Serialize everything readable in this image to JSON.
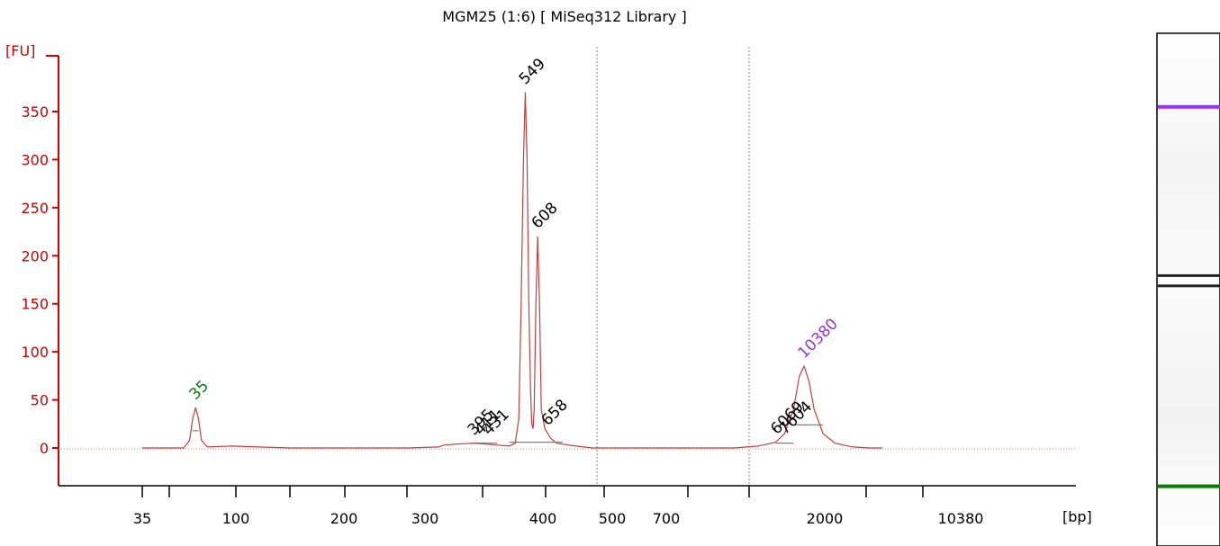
{
  "colors": {
    "axis_red": "#cc0000",
    "trace": "#c04040",
    "label_black": "#000000",
    "lower_marker": "#008000",
    "upper_marker": "#9932cc",
    "region_line": "#808080",
    "baseline_dots": "#d08060",
    "gel_purple": "#9b30ff",
    "gel_green": "#008000",
    "gel_band": "#222222"
  },
  "chart_data": {
    "type": "line",
    "title": "MGM25 (1:6)  [ MiSeq312 Library ]",
    "ylabel": "[FU]",
    "xlabel": "[bp]",
    "ylim": [
      -40,
      390
    ],
    "yticks": [
      0,
      50,
      100,
      150,
      200,
      250,
      300,
      350
    ],
    "x_categories": [
      "35",
      "",
      "100",
      "200",
      "300",
      "400",
      "500",
      "700",
      "",
      "2000",
      "",
      "",
      "10380"
    ],
    "grid": false,
    "region_bounds": [
      0.55,
      7.2
    ],
    "series": [
      {
        "points": [
          [
            0,
            0
          ],
          [
            0.7,
            0
          ],
          [
            0.8,
            8
          ],
          [
            0.85,
            30
          ],
          [
            0.9,
            42
          ],
          [
            0.95,
            30
          ],
          [
            1.0,
            8
          ],
          [
            1.1,
            1
          ],
          [
            1.5,
            2
          ],
          [
            2.5,
            0
          ],
          [
            3.5,
            0
          ],
          [
            4.5,
            0
          ],
          [
            5.0,
            1
          ],
          [
            5.1,
            3
          ],
          [
            5.3,
            4
          ],
          [
            5.6,
            5
          ],
          [
            5.8,
            4
          ],
          [
            6.0,
            3
          ],
          [
            6.2,
            2
          ],
          [
            6.3,
            5
          ],
          [
            6.36,
            30
          ],
          [
            6.4,
            150
          ],
          [
            6.44,
            300
          ],
          [
            6.47,
            370
          ],
          [
            6.5,
            300
          ],
          [
            6.53,
            150
          ],
          [
            6.56,
            60
          ],
          [
            6.58,
            25
          ],
          [
            6.6,
            20
          ],
          [
            6.62,
            40
          ],
          [
            6.65,
            150
          ],
          [
            6.68,
            220
          ],
          [
            6.71,
            150
          ],
          [
            6.74,
            40
          ],
          [
            6.8,
            20
          ],
          [
            6.9,
            10
          ],
          [
            7.0,
            5
          ],
          [
            7.2,
            3
          ],
          [
            7.6,
            0
          ],
          [
            8.5,
            0
          ],
          [
            9.5,
            0
          ],
          [
            10.0,
            0
          ],
          [
            10.4,
            2
          ],
          [
            10.7,
            6
          ],
          [
            10.85,
            15
          ],
          [
            11.0,
            40
          ],
          [
            11.1,
            75
          ],
          [
            11.18,
            85
          ],
          [
            11.26,
            70
          ],
          [
            11.35,
            40
          ],
          [
            11.5,
            15
          ],
          [
            11.7,
            5
          ],
          [
            12.0,
            1
          ],
          [
            12.3,
            0
          ],
          [
            12.5,
            0
          ]
        ]
      }
    ],
    "peaks": [
      {
        "x": 0.9,
        "y": 42,
        "label": "35",
        "kind": "lower"
      },
      {
        "x": 5.6,
        "y": 5,
        "label": "395",
        "kind": "normal"
      },
      {
        "x": 5.72,
        "y": 5,
        "label": "411",
        "kind": "normal"
      },
      {
        "x": 5.86,
        "y": 5,
        "label": "431",
        "kind": "normal"
      },
      {
        "x": 6.47,
        "y": 370,
        "label": "549",
        "kind": "normal"
      },
      {
        "x": 6.68,
        "y": 220,
        "label": "608",
        "kind": "normal"
      },
      {
        "x": 6.85,
        "y": 15,
        "label": "658",
        "kind": "normal"
      },
      {
        "x": 10.72,
        "y": 6,
        "label": "6069",
        "kind": "normal"
      },
      {
        "x": 10.86,
        "y": 6,
        "label": "7604",
        "kind": "normal"
      },
      {
        "x": 11.18,
        "y": 85,
        "label": "10380",
        "kind": "upper"
      }
    ],
    "integration_segments": [
      {
        "x0": 5.55,
        "x1": 6.0,
        "y": 5
      },
      {
        "x0": 6.2,
        "x1": 7.1,
        "y": 6
      },
      {
        "x0": 10.7,
        "x1": 11.0,
        "y": 5
      },
      {
        "x0": 11.0,
        "x1": 11.5,
        "y": 24
      },
      {
        "x0": 0.85,
        "x1": 0.95,
        "y": 18
      }
    ]
  },
  "gel_lane": {
    "bands": [
      {
        "position": 0.14,
        "kind": "upper"
      },
      {
        "position": 0.47,
        "kind": "sample"
      },
      {
        "position": 0.49,
        "kind": "sample"
      },
      {
        "position": 0.88,
        "kind": "lower"
      }
    ]
  }
}
